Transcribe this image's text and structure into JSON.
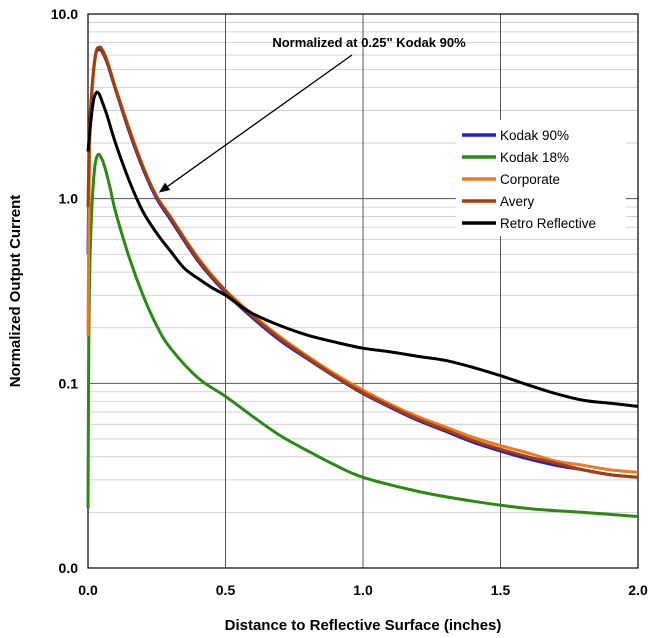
{
  "chart_data": {
    "type": "line",
    "title": "",
    "xlabel": "Distance to Reflective Surface (inches)",
    "ylabel": "Normalized Output Current",
    "xlim": [
      0,
      2
    ],
    "ylim": [
      0.01,
      10
    ],
    "y_scale": "log",
    "grid": true,
    "x_ticks": [
      0,
      0.5,
      1.0,
      1.5,
      2.0
    ],
    "x_tick_labels": [
      "0.0",
      "0.5",
      "1.0",
      "1.5",
      "2.0"
    ],
    "y_ticks": [
      0.01,
      0.1,
      1,
      10
    ],
    "y_tick_labels": [
      "0.0",
      "0.1",
      "1.0",
      "10.0"
    ],
    "legend_position": "right",
    "annotation": {
      "text": "Normalized at 0.25\" Kodak 90%",
      "target": [
        0.25,
        1.0
      ]
    },
    "series": [
      {
        "name": "Kodak 90%",
        "color": "#1f1fcc",
        "points": [
          [
            0.0,
            0.5
          ],
          [
            0.005,
            1.9
          ],
          [
            0.01,
            3.0
          ],
          [
            0.02,
            4.8
          ],
          [
            0.03,
            6.2
          ],
          [
            0.04,
            6.4
          ],
          [
            0.05,
            6.3
          ],
          [
            0.07,
            5.4
          ],
          [
            0.1,
            3.9
          ],
          [
            0.15,
            2.3
          ],
          [
            0.2,
            1.45
          ],
          [
            0.25,
            1.0
          ],
          [
            0.3,
            0.77
          ],
          [
            0.4,
            0.46
          ],
          [
            0.5,
            0.31
          ],
          [
            0.6,
            0.225
          ],
          [
            0.7,
            0.17
          ],
          [
            0.8,
            0.135
          ],
          [
            0.9,
            0.108
          ],
          [
            1.0,
            0.088
          ],
          [
            1.1,
            0.074
          ],
          [
            1.2,
            0.063
          ],
          [
            1.3,
            0.055
          ],
          [
            1.4,
            0.048
          ],
          [
            1.5,
            0.043
          ],
          [
            1.6,
            0.039
          ],
          [
            1.7,
            0.036
          ],
          [
            1.8,
            0.034
          ],
          [
            1.9,
            0.032
          ],
          [
            2.0,
            0.031
          ]
        ]
      },
      {
        "name": "Kodak 18%",
        "color": "#2a8a14",
        "points": [
          [
            0.0,
            0.021
          ],
          [
            0.003,
            0.17
          ],
          [
            0.007,
            0.45
          ],
          [
            0.015,
            0.95
          ],
          [
            0.025,
            1.5
          ],
          [
            0.035,
            1.72
          ],
          [
            0.045,
            1.7
          ],
          [
            0.06,
            1.5
          ],
          [
            0.08,
            1.15
          ],
          [
            0.1,
            0.85
          ],
          [
            0.15,
            0.48
          ],
          [
            0.2,
            0.3
          ],
          [
            0.25,
            0.205
          ],
          [
            0.3,
            0.155
          ],
          [
            0.4,
            0.107
          ],
          [
            0.5,
            0.085
          ],
          [
            0.6,
            0.066
          ],
          [
            0.7,
            0.052
          ],
          [
            0.8,
            0.043
          ],
          [
            0.9,
            0.036
          ],
          [
            1.0,
            0.031
          ],
          [
            1.2,
            0.026
          ],
          [
            1.4,
            0.023
          ],
          [
            1.6,
            0.021
          ],
          [
            1.8,
            0.02
          ],
          [
            2.0,
            0.019
          ]
        ]
      },
      {
        "name": "Corporate",
        "color": "#f07820",
        "points": [
          [
            0.0,
            0.18
          ],
          [
            0.005,
            1.5
          ],
          [
            0.01,
            2.8
          ],
          [
            0.02,
            4.8
          ],
          [
            0.03,
            6.3
          ],
          [
            0.04,
            6.6
          ],
          [
            0.05,
            6.5
          ],
          [
            0.07,
            5.6
          ],
          [
            0.1,
            4.0
          ],
          [
            0.15,
            2.4
          ],
          [
            0.2,
            1.5
          ],
          [
            0.25,
            1.03
          ],
          [
            0.3,
            0.8
          ],
          [
            0.4,
            0.48
          ],
          [
            0.5,
            0.32
          ],
          [
            0.6,
            0.235
          ],
          [
            0.7,
            0.178
          ],
          [
            0.8,
            0.14
          ],
          [
            0.9,
            0.112
          ],
          [
            1.0,
            0.092
          ],
          [
            1.1,
            0.077
          ],
          [
            1.2,
            0.066
          ],
          [
            1.3,
            0.058
          ],
          [
            1.4,
            0.051
          ],
          [
            1.5,
            0.046
          ],
          [
            1.6,
            0.042
          ],
          [
            1.7,
            0.038
          ],
          [
            1.8,
            0.036
          ],
          [
            1.9,
            0.034
          ],
          [
            2.0,
            0.033
          ]
        ]
      },
      {
        "name": "Avery",
        "color": "#a0400a",
        "points": [
          [
            0.0,
            0.9
          ],
          [
            0.005,
            2.2
          ],
          [
            0.01,
            3.2
          ],
          [
            0.02,
            5.0
          ],
          [
            0.03,
            6.3
          ],
          [
            0.04,
            6.6
          ],
          [
            0.05,
            6.45
          ],
          [
            0.07,
            5.5
          ],
          [
            0.1,
            3.95
          ],
          [
            0.15,
            2.35
          ],
          [
            0.2,
            1.48
          ],
          [
            0.25,
            1.02
          ],
          [
            0.3,
            0.79
          ],
          [
            0.4,
            0.47
          ],
          [
            0.5,
            0.315
          ],
          [
            0.6,
            0.23
          ],
          [
            0.7,
            0.174
          ],
          [
            0.8,
            0.137
          ],
          [
            0.9,
            0.109
          ],
          [
            1.0,
            0.089
          ],
          [
            1.1,
            0.075
          ],
          [
            1.2,
            0.064
          ],
          [
            1.3,
            0.056
          ],
          [
            1.4,
            0.049
          ],
          [
            1.5,
            0.044
          ],
          [
            1.6,
            0.04
          ],
          [
            1.7,
            0.037
          ],
          [
            1.8,
            0.034
          ],
          [
            1.9,
            0.032
          ],
          [
            2.0,
            0.031
          ]
        ]
      },
      {
        "name": "Retro Reflective",
        "color": "#000000",
        "points": [
          [
            0.0,
            1.8
          ],
          [
            0.01,
            2.6
          ],
          [
            0.02,
            3.4
          ],
          [
            0.03,
            3.75
          ],
          [
            0.04,
            3.7
          ],
          [
            0.05,
            3.4
          ],
          [
            0.07,
            2.8
          ],
          [
            0.1,
            2.0
          ],
          [
            0.15,
            1.25
          ],
          [
            0.2,
            0.85
          ],
          [
            0.25,
            0.65
          ],
          [
            0.3,
            0.52
          ],
          [
            0.35,
            0.42
          ],
          [
            0.4,
            0.37
          ],
          [
            0.45,
            0.33
          ],
          [
            0.5,
            0.3
          ],
          [
            0.55,
            0.265
          ],
          [
            0.6,
            0.238
          ],
          [
            0.7,
            0.205
          ],
          [
            0.8,
            0.182
          ],
          [
            0.9,
            0.167
          ],
          [
            1.0,
            0.155
          ],
          [
            1.1,
            0.148
          ],
          [
            1.2,
            0.14
          ],
          [
            1.3,
            0.133
          ],
          [
            1.4,
            0.122
          ],
          [
            1.5,
            0.11
          ],
          [
            1.6,
            0.098
          ],
          [
            1.7,
            0.088
          ],
          [
            1.8,
            0.081
          ],
          [
            1.9,
            0.078
          ],
          [
            2.0,
            0.075
          ]
        ]
      }
    ]
  }
}
